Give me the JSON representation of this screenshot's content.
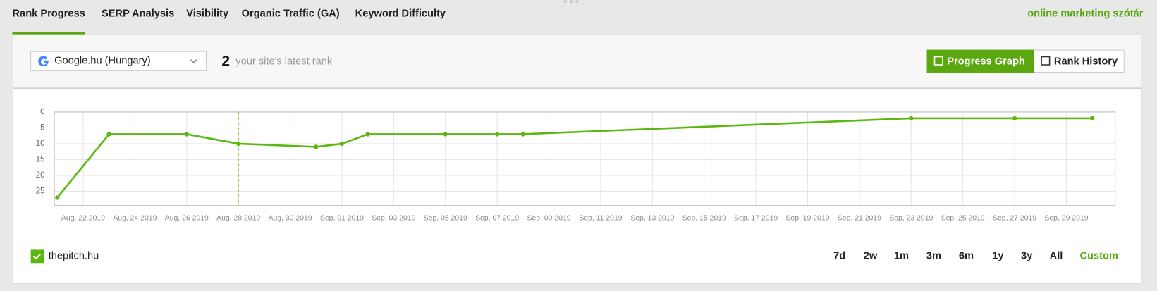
{
  "tabs": [
    "Rank Progress",
    "SERP Analysis",
    "Visibility",
    "Organic Traffic (GA)",
    "Keyword Difficulty"
  ],
  "active_tab": 0,
  "brand_link": "online marketing szótár",
  "search_engine": "Google.hu (Hungary)",
  "latest_rank": 2,
  "latest_rank_label": "your site's latest rank",
  "view_buttons": [
    "Progress Graph",
    "Rank History"
  ],
  "active_view": 0,
  "chart_data": {
    "type": "line",
    "x": [
      "2019-08-21",
      "2019-08-23",
      "2019-08-26",
      "2019-08-28",
      "2019-08-31",
      "2019-09-01",
      "2019-09-02",
      "2019-09-05",
      "2019-09-07",
      "2019-09-08",
      "2019-09-23",
      "2019-09-27",
      "2019-09-30"
    ],
    "series": [
      {
        "name": "thepitch.hu",
        "color": "#5cb811",
        "values": [
          27,
          7,
          7,
          10,
          11,
          10,
          7,
          7,
          7,
          7,
          2,
          2,
          2
        ]
      }
    ],
    "xlim": [
      "2019-08-21",
      "2019-10-01"
    ],
    "xticks": [
      {
        "value": "2019-08-22",
        "label": "Aug, 22 2019"
      },
      {
        "value": "2019-08-24",
        "label": "Aug, 24 2019"
      },
      {
        "value": "2019-08-26",
        "label": "Aug, 26 2019"
      },
      {
        "value": "2019-08-28",
        "label": "Aug, 28 2019"
      },
      {
        "value": "2019-08-30",
        "label": "Aug, 30 2019"
      },
      {
        "value": "2019-09-01",
        "label": "Sep, 01 2019"
      },
      {
        "value": "2019-09-03",
        "label": "Sep, 03 2019"
      },
      {
        "value": "2019-09-05",
        "label": "Sep, 05 2019"
      },
      {
        "value": "2019-09-07",
        "label": "Sep, 07 2019"
      },
      {
        "value": "2019-09-09",
        "label": "Sep, 09 2019"
      },
      {
        "value": "2019-09-11",
        "label": "Sep, 11 2019"
      },
      {
        "value": "2019-09-13",
        "label": "Sep, 13 2019"
      },
      {
        "value": "2019-09-15",
        "label": "Sep, 15 2019"
      },
      {
        "value": "2019-09-17",
        "label": "Sep, 17 2019"
      },
      {
        "value": "2019-09-19",
        "label": "Sep, 19 2019"
      },
      {
        "value": "2019-09-21",
        "label": "Sep, 21 2019"
      },
      {
        "value": "2019-09-23",
        "label": "Sep, 23 2019"
      },
      {
        "value": "2019-09-25",
        "label": "Sep, 25 2019"
      },
      {
        "value": "2019-09-27",
        "label": "Sep, 27 2019"
      },
      {
        "value": "2019-09-29",
        "label": "Sep, 29 2019"
      }
    ],
    "ylim": [
      0,
      29.5
    ],
    "yticks": [
      0,
      5,
      10,
      15,
      20,
      25
    ],
    "y_inverted": true,
    "grid": true,
    "crosshair_x": "2019-08-28"
  },
  "range_buttons": [
    "7d",
    "2w",
    "1m",
    "3m",
    "6m",
    "1y",
    "3y",
    "All",
    "Custom"
  ],
  "active_range": 8
}
